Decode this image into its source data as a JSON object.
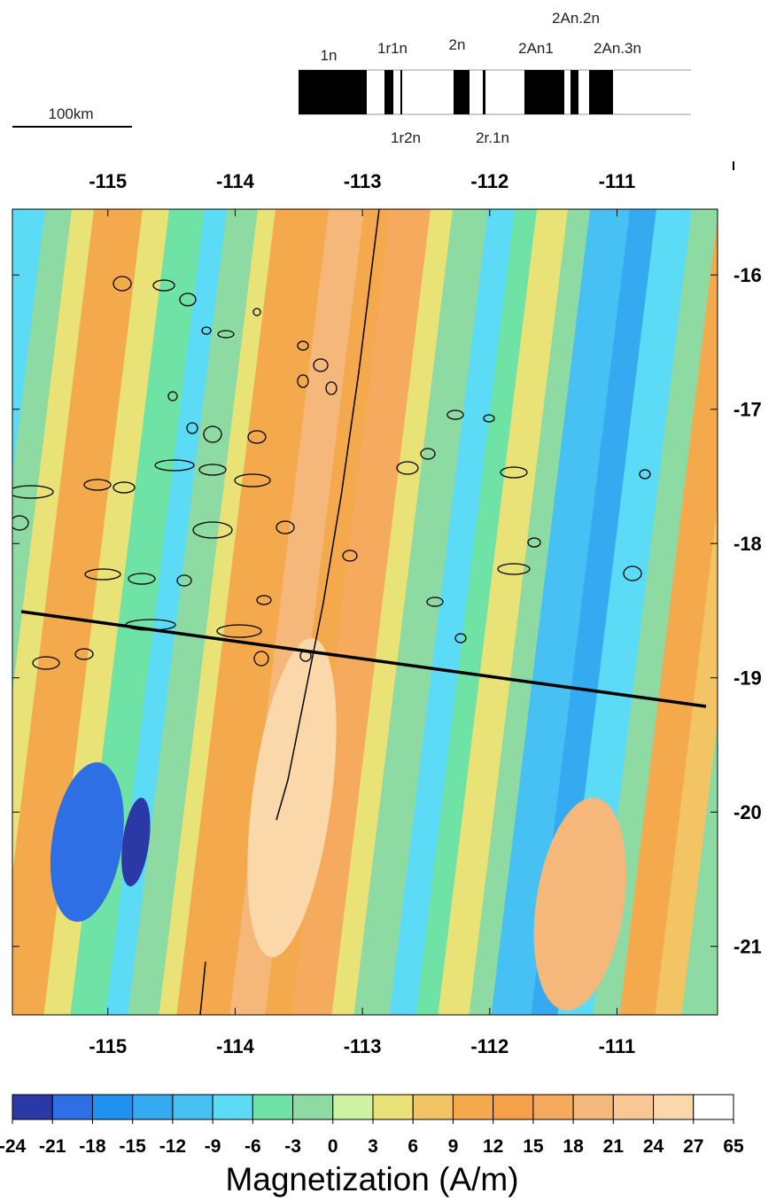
{
  "scale_bar": "100km",
  "timescale": {
    "top_labels": [
      "1n",
      "1r1n",
      "2n",
      "2An1",
      "2An.2n",
      "2An.3n"
    ],
    "bottom_labels": [
      "1r2n",
      "2r.1n"
    ]
  },
  "map": {
    "xlim": [
      -115.75,
      -110.21
    ],
    "ylim": [
      -21.51,
      -15.51
    ],
    "xticks": [
      -115,
      -114,
      -113,
      -112,
      -111
    ],
    "yticks": [
      -16,
      -17,
      -18,
      -19,
      -20,
      -21
    ]
  },
  "colorbar": {
    "label": "Magnetization (A/m)",
    "ticks": [
      -24,
      -21,
      -18,
      -15,
      -12,
      -9,
      -6,
      -3,
      0,
      3,
      6,
      9,
      12,
      15,
      18,
      21,
      24,
      27,
      65
    ],
    "colors": [
      "#2a39a6",
      "#2f6fe6",
      "#1e92ee",
      "#35aaf0",
      "#47c1f4",
      "#5cdbf6",
      "#6fe2a6",
      "#8ddba2",
      "#cdf2a2",
      "#e8e277",
      "#f2c463",
      "#f4a94c",
      "#f7a04a",
      "#f5aa5e",
      "#f6b77b",
      "#f8c794",
      "#fad8aa",
      "#ffffff"
    ]
  }
}
